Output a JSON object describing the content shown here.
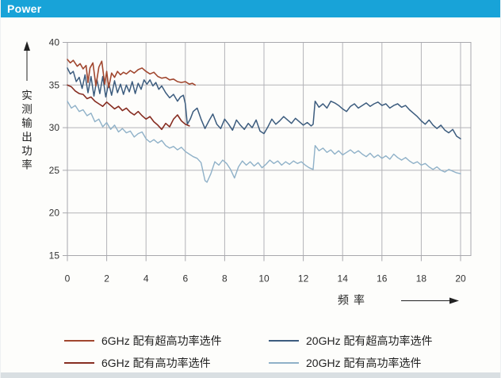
{
  "header": {
    "title": "Power",
    "bar_color": "#18a3d8"
  },
  "colors": {
    "grid": "#b3b3b8",
    "frame": "#a8a8ad",
    "axis_text": "#333333",
    "label_text": "#222222"
  },
  "chart_data": {
    "type": "line",
    "title": "Power",
    "xlabel": "频率",
    "ylabel": "实测输出功率",
    "xlim": [
      0,
      20.5
    ],
    "ylim": [
      15,
      40
    ],
    "xticks": [
      0,
      2,
      4,
      6,
      8,
      10,
      12,
      14,
      16,
      18,
      20
    ],
    "yticks": [
      15,
      20,
      25,
      30,
      35,
      40
    ],
    "grid": true,
    "legend_position": "bottom",
    "series": [
      {
        "name": "6GHz 配有超高功率选件",
        "color": "#a1472f",
        "width": 1.6,
        "points": [
          [
            0,
            38.0
          ],
          [
            0.15,
            37.6
          ],
          [
            0.3,
            37.9
          ],
          [
            0.5,
            37.2
          ],
          [
            0.65,
            37.5
          ],
          [
            0.8,
            36.9
          ],
          [
            0.95,
            37.3
          ],
          [
            1.05,
            35.3
          ],
          [
            1.15,
            37.0
          ],
          [
            1.3,
            37.6
          ],
          [
            1.45,
            34.9
          ],
          [
            1.6,
            37.1
          ],
          [
            1.75,
            37.8
          ],
          [
            1.9,
            35.1
          ],
          [
            2.0,
            36.6
          ],
          [
            2.1,
            34.7
          ],
          [
            2.25,
            36.4
          ],
          [
            2.4,
            35.9
          ],
          [
            2.55,
            36.6
          ],
          [
            2.7,
            36.2
          ],
          [
            2.85,
            36.5
          ],
          [
            3.0,
            36.3
          ],
          [
            3.2,
            36.7
          ],
          [
            3.4,
            36.4
          ],
          [
            3.6,
            36.8
          ],
          [
            3.8,
            37.0
          ],
          [
            4.0,
            36.6
          ],
          [
            4.2,
            36.3
          ],
          [
            4.4,
            36.5
          ],
          [
            4.6,
            36.0
          ],
          [
            4.8,
            35.8
          ],
          [
            5.0,
            35.9
          ],
          [
            5.2,
            35.6
          ],
          [
            5.4,
            35.7
          ],
          [
            5.6,
            35.4
          ],
          [
            5.8,
            35.3
          ],
          [
            6.0,
            35.4
          ],
          [
            6.2,
            35.1
          ],
          [
            6.35,
            35.2
          ],
          [
            6.5,
            35.0
          ]
        ]
      },
      {
        "name": "6GHz 配有高功率选件",
        "color": "#872e22",
        "width": 1.6,
        "points": [
          [
            0,
            35.0
          ],
          [
            0.2,
            34.8
          ],
          [
            0.4,
            34.3
          ],
          [
            0.6,
            34.0
          ],
          [
            0.8,
            33.9
          ],
          [
            1.0,
            33.4
          ],
          [
            1.2,
            33.6
          ],
          [
            1.4,
            33.1
          ],
          [
            1.6,
            32.8
          ],
          [
            1.8,
            32.5
          ],
          [
            2.0,
            33.0
          ],
          [
            2.2,
            32.6
          ],
          [
            2.4,
            32.2
          ],
          [
            2.6,
            32.5
          ],
          [
            2.8,
            32.0
          ],
          [
            3.0,
            32.3
          ],
          [
            3.2,
            31.8
          ],
          [
            3.4,
            31.5
          ],
          [
            3.6,
            31.9
          ],
          [
            3.8,
            31.4
          ],
          [
            4.0,
            31.0
          ],
          [
            4.2,
            31.3
          ],
          [
            4.4,
            30.7
          ],
          [
            4.6,
            30.3
          ],
          [
            4.8,
            29.8
          ],
          [
            5.0,
            30.5
          ],
          [
            5.2,
            30.1
          ],
          [
            5.4,
            31.0
          ],
          [
            5.6,
            31.5
          ],
          [
            5.8,
            30.8
          ],
          [
            6.0,
            30.4
          ],
          [
            6.2,
            30.2
          ]
        ]
      },
      {
        "name": "20GHz 配有超高功率选件",
        "color": "#3c5c7e",
        "width": 1.5,
        "points": [
          [
            0,
            37.0
          ],
          [
            0.15,
            36.3
          ],
          [
            0.3,
            36.6
          ],
          [
            0.45,
            35.4
          ],
          [
            0.6,
            35.9
          ],
          [
            0.75,
            34.6
          ],
          [
            0.9,
            36.2
          ],
          [
            1.05,
            34.1
          ],
          [
            1.2,
            36.0
          ],
          [
            1.35,
            33.7
          ],
          [
            1.5,
            35.7
          ],
          [
            1.65,
            34.0
          ],
          [
            1.8,
            36.0
          ],
          [
            1.95,
            33.6
          ],
          [
            2.1,
            35.2
          ],
          [
            2.25,
            33.8
          ],
          [
            2.4,
            35.5
          ],
          [
            2.55,
            34.1
          ],
          [
            2.7,
            35.1
          ],
          [
            2.85,
            33.9
          ],
          [
            3.0,
            35.0
          ],
          [
            3.15,
            34.2
          ],
          [
            3.3,
            35.4
          ],
          [
            3.45,
            34.0
          ],
          [
            3.6,
            35.2
          ],
          [
            3.75,
            34.5
          ],
          [
            3.9,
            35.6
          ],
          [
            4.05,
            35.1
          ],
          [
            4.2,
            35.6
          ],
          [
            4.35,
            34.9
          ],
          [
            4.5,
            35.3
          ],
          [
            4.65,
            34.5
          ],
          [
            4.8,
            34.9
          ],
          [
            5.0,
            34.1
          ],
          [
            5.2,
            33.5
          ],
          [
            5.4,
            33.9
          ],
          [
            5.6,
            33.1
          ],
          [
            5.75,
            33.6
          ],
          [
            5.9,
            33.8
          ],
          [
            6.0,
            32.8
          ],
          [
            6.1,
            30.4
          ],
          [
            6.25,
            31.0
          ],
          [
            6.4,
            31.9
          ],
          [
            6.6,
            32.3
          ],
          [
            6.8,
            31.0
          ],
          [
            7.0,
            29.9
          ],
          [
            7.2,
            30.8
          ],
          [
            7.4,
            31.6
          ],
          [
            7.6,
            30.4
          ],
          [
            7.8,
            29.9
          ],
          [
            8.0,
            31.0
          ],
          [
            8.2,
            30.4
          ],
          [
            8.4,
            29.7
          ],
          [
            8.6,
            30.9
          ],
          [
            8.8,
            30.3
          ],
          [
            9.0,
            29.8
          ],
          [
            9.2,
            30.5
          ],
          [
            9.4,
            30.0
          ],
          [
            9.6,
            30.9
          ],
          [
            9.8,
            29.6
          ],
          [
            10.0,
            29.3
          ],
          [
            10.2,
            30.1
          ],
          [
            10.4,
            31.0
          ],
          [
            10.6,
            30.4
          ],
          [
            10.8,
            30.8
          ],
          [
            11.0,
            31.3
          ],
          [
            11.2,
            30.9
          ],
          [
            11.4,
            30.5
          ],
          [
            11.6,
            31.1
          ],
          [
            11.8,
            30.7
          ],
          [
            12.0,
            30.3
          ],
          [
            12.2,
            30.6
          ],
          [
            12.4,
            30.2
          ],
          [
            12.5,
            30.4
          ],
          [
            12.6,
            33.1
          ],
          [
            12.8,
            32.4
          ],
          [
            13.0,
            32.8
          ],
          [
            13.2,
            32.3
          ],
          [
            13.4,
            33.1
          ],
          [
            13.6,
            32.9
          ],
          [
            13.8,
            32.6
          ],
          [
            14.0,
            32.2
          ],
          [
            14.2,
            31.9
          ],
          [
            14.4,
            32.5
          ],
          [
            14.6,
            32.8
          ],
          [
            14.8,
            32.3
          ],
          [
            15.0,
            32.6
          ],
          [
            15.2,
            32.9
          ],
          [
            15.4,
            32.5
          ],
          [
            15.6,
            32.8
          ],
          [
            15.8,
            33.0
          ],
          [
            16.0,
            32.6
          ],
          [
            16.2,
            32.8
          ],
          [
            16.4,
            32.3
          ],
          [
            16.6,
            32.6
          ],
          [
            16.8,
            32.8
          ],
          [
            17.0,
            32.4
          ],
          [
            17.2,
            32.6
          ],
          [
            17.4,
            32.1
          ],
          [
            17.6,
            31.7
          ],
          [
            17.8,
            31.3
          ],
          [
            18.0,
            30.8
          ],
          [
            18.2,
            30.4
          ],
          [
            18.4,
            30.9
          ],
          [
            18.6,
            30.3
          ],
          [
            18.8,
            29.9
          ],
          [
            19.0,
            30.3
          ],
          [
            19.2,
            29.7
          ],
          [
            19.4,
            29.4
          ],
          [
            19.6,
            29.8
          ],
          [
            19.8,
            29.0
          ],
          [
            20.0,
            28.7
          ]
        ]
      },
      {
        "name": "20GHz 配有高功率选件",
        "color": "#8fb1c8",
        "width": 1.4,
        "points": [
          [
            0,
            33.1
          ],
          [
            0.2,
            32.3
          ],
          [
            0.4,
            32.6
          ],
          [
            0.6,
            31.9
          ],
          [
            0.8,
            32.1
          ],
          [
            1.0,
            31.4
          ],
          [
            1.2,
            31.7
          ],
          [
            1.4,
            30.7
          ],
          [
            1.6,
            31.0
          ],
          [
            1.8,
            30.1
          ],
          [
            2.0,
            30.6
          ],
          [
            2.2,
            29.8
          ],
          [
            2.4,
            30.3
          ],
          [
            2.6,
            29.5
          ],
          [
            2.8,
            29.9
          ],
          [
            3.0,
            29.4
          ],
          [
            3.2,
            29.6
          ],
          [
            3.4,
            28.9
          ],
          [
            3.6,
            29.3
          ],
          [
            3.8,
            29.5
          ],
          [
            4.0,
            28.7
          ],
          [
            4.2,
            28.3
          ],
          [
            4.4,
            28.6
          ],
          [
            4.6,
            28.2
          ],
          [
            4.8,
            28.5
          ],
          [
            5.0,
            27.9
          ],
          [
            5.2,
            27.6
          ],
          [
            5.4,
            27.8
          ],
          [
            5.6,
            27.4
          ],
          [
            5.8,
            27.7
          ],
          [
            6.0,
            27.2
          ],
          [
            6.2,
            26.9
          ],
          [
            6.4,
            26.6
          ],
          [
            6.6,
            26.4
          ],
          [
            6.8,
            25.9
          ],
          [
            7.0,
            23.8
          ],
          [
            7.1,
            23.6
          ],
          [
            7.3,
            24.6
          ],
          [
            7.5,
            26.0
          ],
          [
            7.7,
            25.6
          ],
          [
            7.9,
            26.2
          ],
          [
            8.1,
            25.8
          ],
          [
            8.3,
            25.1
          ],
          [
            8.5,
            24.1
          ],
          [
            8.7,
            25.4
          ],
          [
            8.9,
            26.1
          ],
          [
            9.1,
            25.6
          ],
          [
            9.3,
            26.0
          ],
          [
            9.5,
            25.5
          ],
          [
            9.7,
            25.9
          ],
          [
            9.9,
            25.3
          ],
          [
            10.1,
            25.7
          ],
          [
            10.3,
            26.2
          ],
          [
            10.5,
            25.8
          ],
          [
            10.7,
            26.1
          ],
          [
            10.9,
            25.6
          ],
          [
            11.1,
            26.0
          ],
          [
            11.3,
            25.7
          ],
          [
            11.5,
            26.1
          ],
          [
            11.7,
            25.8
          ],
          [
            11.9,
            26.0
          ],
          [
            12.1,
            25.6
          ],
          [
            12.3,
            25.3
          ],
          [
            12.5,
            25.1
          ],
          [
            12.6,
            27.9
          ],
          [
            12.8,
            27.3
          ],
          [
            13.0,
            27.6
          ],
          [
            13.2,
            27.1
          ],
          [
            13.4,
            27.4
          ],
          [
            13.6,
            26.9
          ],
          [
            13.8,
            27.3
          ],
          [
            14.0,
            26.8
          ],
          [
            14.2,
            27.1
          ],
          [
            14.4,
            27.4
          ],
          [
            14.6,
            27.0
          ],
          [
            14.8,
            27.3
          ],
          [
            15.0,
            26.9
          ],
          [
            15.2,
            26.6
          ],
          [
            15.4,
            27.0
          ],
          [
            15.6,
            26.5
          ],
          [
            15.8,
            26.8
          ],
          [
            16.0,
            26.4
          ],
          [
            16.2,
            26.7
          ],
          [
            16.4,
            26.3
          ],
          [
            16.6,
            26.9
          ],
          [
            16.8,
            26.5
          ],
          [
            17.0,
            26.2
          ],
          [
            17.2,
            26.5
          ],
          [
            17.4,
            26.1
          ],
          [
            17.6,
            25.8
          ],
          [
            17.8,
            26.0
          ],
          [
            18.0,
            25.6
          ],
          [
            18.2,
            25.8
          ],
          [
            18.4,
            25.4
          ],
          [
            18.6,
            25.1
          ],
          [
            18.8,
            25.4
          ],
          [
            19.0,
            25.0
          ],
          [
            19.2,
            24.8
          ],
          [
            19.4,
            25.1
          ],
          [
            19.6,
            24.9
          ],
          [
            19.8,
            24.7
          ],
          [
            20.0,
            24.6
          ]
        ]
      }
    ]
  },
  "legend": {
    "items": [
      {
        "label": "6GHz 配有超高功率选件",
        "color": "#a1472f"
      },
      {
        "label": "6GHz 配有高功率选件",
        "color": "#872e22"
      },
      {
        "label": "20GHz 配有超高功率选件",
        "color": "#3c5c7e"
      },
      {
        "label": "20GHz 配有高功率选件",
        "color": "#8fb1c8"
      }
    ]
  }
}
